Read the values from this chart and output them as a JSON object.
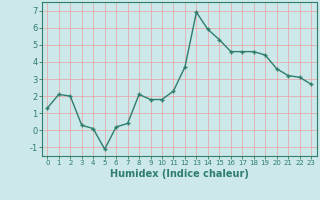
{
  "x": [
    0,
    1,
    2,
    3,
    4,
    5,
    6,
    7,
    8,
    9,
    10,
    11,
    12,
    13,
    14,
    15,
    16,
    17,
    18,
    19,
    20,
    21,
    22,
    23
  ],
  "y": [
    1.3,
    2.1,
    2.0,
    0.3,
    0.1,
    -1.1,
    0.2,
    0.4,
    2.1,
    1.8,
    1.8,
    2.3,
    3.7,
    6.9,
    5.9,
    5.3,
    4.6,
    4.6,
    4.6,
    4.4,
    3.6,
    3.2,
    3.1,
    2.7
  ],
  "line_color": "#2e7d6e",
  "marker": "+",
  "markersize": 3.5,
  "linewidth": 1.0,
  "bg_color": "#cce8e8",
  "grid_color": "#e8a0a0",
  "xlabel": "Humidex (Indice chaleur)",
  "xlim": [
    -0.5,
    23.5
  ],
  "ylim": [
    -1.5,
    7.5
  ],
  "yticks": [
    -1,
    0,
    1,
    2,
    3,
    4,
    5,
    6,
    7
  ],
  "xticks": [
    0,
    1,
    2,
    3,
    4,
    5,
    6,
    7,
    8,
    9,
    10,
    11,
    12,
    13,
    14,
    15,
    16,
    17,
    18,
    19,
    20,
    21,
    22,
    23
  ],
  "xlabel_fontsize": 7,
  "ytick_fontsize": 6,
  "xtick_fontsize": 5
}
